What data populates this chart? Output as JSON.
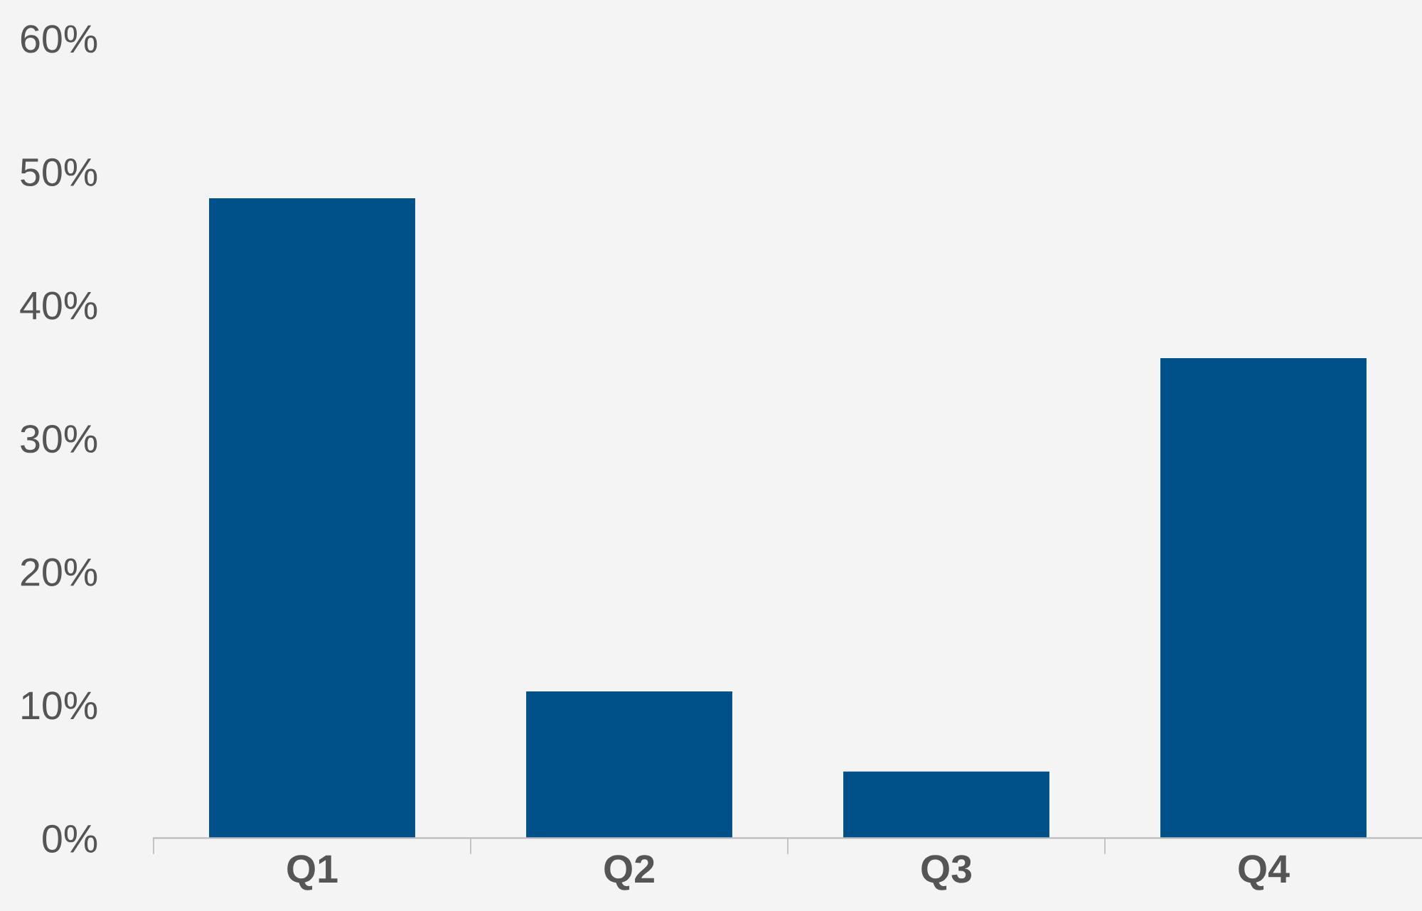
{
  "chart_data": {
    "type": "bar",
    "categories": [
      "Q1",
      "Q2",
      "Q3",
      "Q4"
    ],
    "values": [
      48,
      11,
      5,
      36
    ],
    "color": "#00508a",
    "ylim": [
      0,
      60
    ],
    "yticks": [
      {
        "value": 0,
        "label": "0%"
      },
      {
        "value": 10,
        "label": "10%"
      },
      {
        "value": 20,
        "label": "20%"
      },
      {
        "value": 30,
        "label": "30%"
      },
      {
        "value": 40,
        "label": "40%"
      },
      {
        "value": 50,
        "label": "50%"
      },
      {
        "value": 60,
        "label": "60%"
      }
    ],
    "grid": false,
    "legend": false
  }
}
